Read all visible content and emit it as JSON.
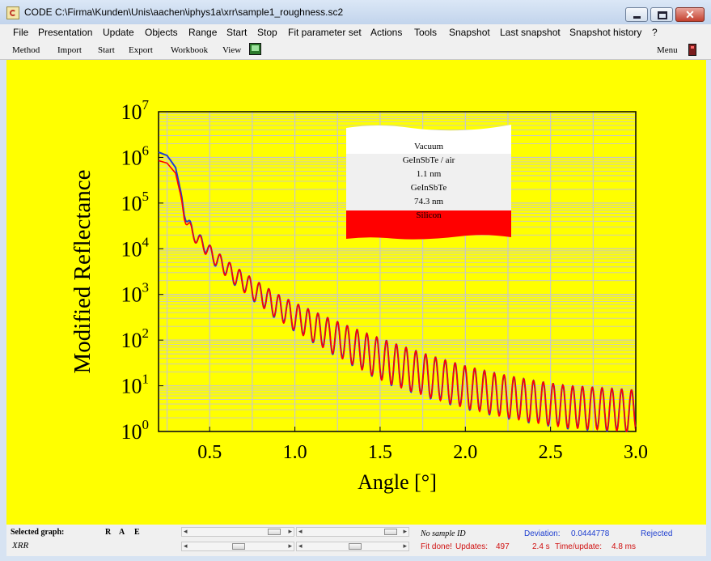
{
  "window": {
    "title": "CODE C:\\Firma\\Kunden\\Unis\\aachen\\iphys1a\\xrr\\sample1_roughness.sc2",
    "close_glyph": "✕"
  },
  "menu": [
    "File",
    "Presentation",
    "Update",
    "Objects",
    "Range",
    "Start",
    "Stop",
    "Fit parameter set",
    "Actions",
    "Tools",
    "Snapshot",
    "Last snapshot",
    "Snapshot history",
    "?"
  ],
  "toolbar": {
    "items": [
      "Method",
      "Import",
      "Start",
      "Export",
      "Workbook",
      "View"
    ],
    "menu_label": "Menu",
    "icons": [
      "monitor-icon",
      "menu-icon"
    ]
  },
  "layer_stack": {
    "layers": [
      "Vacuum",
      "GeInSbTe / air",
      "1.1 nm",
      "GeInSbTe",
      "74.3 nm",
      "Silicon"
    ],
    "substrate_color": "#ff0000"
  },
  "chart_data": {
    "type": "line",
    "xlabel": "Angle [°]",
    "ylabel": "Modified Reflectance",
    "xlim": [
      0.2,
      3.0
    ],
    "ylim": [
      1,
      10000000
    ],
    "y_scale": "log",
    "x_ticks": [
      "0.5",
      "1.0",
      "1.5",
      "2.0",
      "2.5",
      "3.0"
    ],
    "y_tick_exponents": [
      "0",
      "1",
      "2",
      "3",
      "4",
      "5",
      "6",
      "7"
    ],
    "y_tick_base": "10",
    "grid": true,
    "series_colors": {
      "measured": "#1f3fd0",
      "simulated": "#ff0000"
    },
    "x": [
      0.2,
      0.25,
      0.3,
      0.35,
      0.4,
      0.5,
      0.6,
      0.7,
      0.8,
      0.9,
      1.0,
      1.2,
      1.4,
      1.6,
      1.8,
      2.0,
      2.2,
      2.4,
      2.6,
      2.8,
      3.0
    ],
    "series": [
      {
        "values": [
          1300000,
          1100000,
          600000,
          80000,
          30000,
          12000,
          5500,
          3000,
          1700,
          1000,
          650,
          300,
          150,
          80,
          45,
          27,
          18,
          13,
          10,
          9,
          8
        ]
      },
      {
        "values": [
          850000,
          750000,
          450000,
          70000,
          28000,
          12000,
          5500,
          3000,
          1700,
          1000,
          650,
          300,
          150,
          80,
          45,
          27,
          18,
          13,
          10,
          9,
          8
        ]
      }
    ]
  },
  "status": {
    "selected_graph_label": "Selected graph:",
    "flags": [
      "R",
      "A",
      "E"
    ],
    "graph_name": "XRR",
    "sample_id": "No sample ID",
    "deviation_label": "Deviation:",
    "deviation_value": "0.0444778",
    "rejected": "Rejected",
    "fit_done": "Fit done!",
    "updates_label": "Updates:",
    "updates_value": "497",
    "time_value": "2.4 s",
    "time_update_label": "Time/update:",
    "time_update_value": "4.8 ms",
    "scroll_left_glyph": "◂",
    "scroll_right_glyph": "▸",
    "colors": {
      "blue": "#1f3fd0",
      "red": "#d01010"
    }
  }
}
